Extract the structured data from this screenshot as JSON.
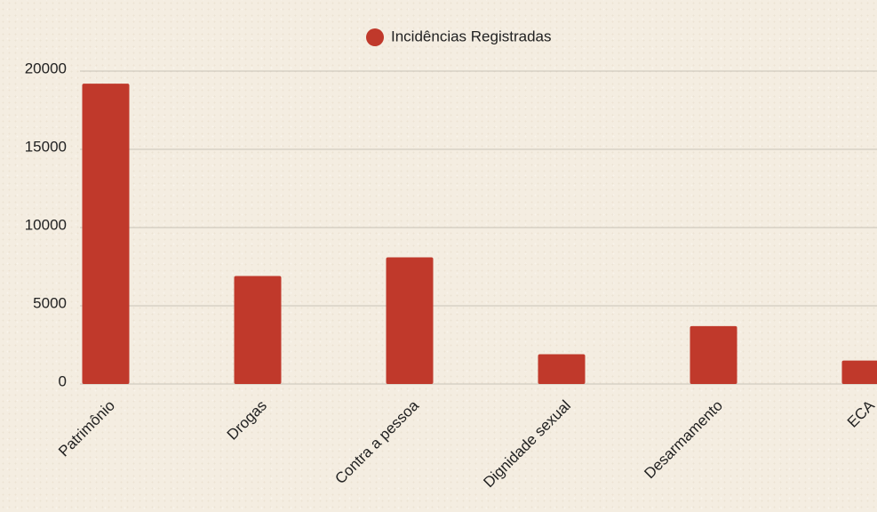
{
  "chart_data": {
    "type": "bar",
    "legend": "Incidências Registradas",
    "categories": [
      "Patrimônio",
      "Drogas",
      "Contra a pessoa",
      "Dignidade sexual",
      "Desarmamento",
      "ECA"
    ],
    "values": [
      19200,
      6900,
      8100,
      1900,
      3700,
      1500
    ],
    "color": "#c0392b",
    "ylim": [
      0,
      20000
    ],
    "yticks": [
      0,
      5000,
      10000,
      15000,
      20000
    ],
    "grid": true
  }
}
